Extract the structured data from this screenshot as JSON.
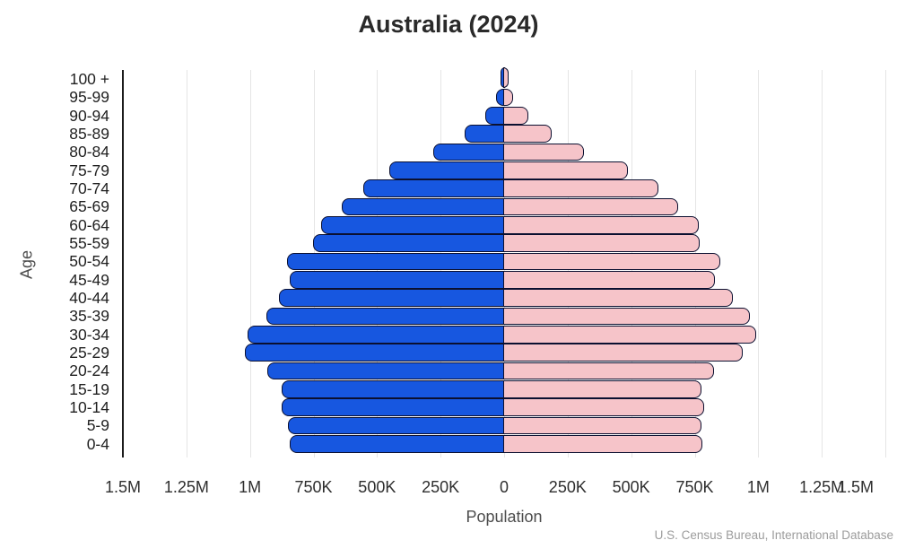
{
  "title": "Australia (2024)",
  "xlabel": "Population",
  "ylabel": "Age",
  "source": "U.S. Census Bureau, International Database",
  "colors": {
    "male": "#1757E0",
    "female": "#F6C4C9",
    "outline": "#0B1030",
    "gridline": "#E5E5E5",
    "axis": "#1C1C1C"
  },
  "chart_data": {
    "type": "bar",
    "subtype": "population-pyramid",
    "title": "Australia (2024)",
    "xlabel": "Population",
    "ylabel": "Age",
    "grid": true,
    "xlim": [
      -1500000,
      1500000
    ],
    "tick_values": [
      -1500000,
      -1250000,
      -1000000,
      -750000,
      -500000,
      -250000,
      0,
      250000,
      500000,
      750000,
      1000000,
      1250000,
      1500000
    ],
    "x_ticks": [
      "1.5M",
      "1.25M",
      "1M",
      "750K",
      "500K",
      "250K",
      "0",
      "250K",
      "500K",
      "750K",
      "1M",
      "1.25M",
      "1.5M"
    ],
    "categories": [
      "100 +",
      "95-99",
      "90-94",
      "85-89",
      "80-84",
      "75-79",
      "70-74",
      "65-69",
      "60-64",
      "55-59",
      "50-54",
      "45-49",
      "40-44",
      "35-39",
      "30-34",
      "25-29",
      "20-24",
      "15-19",
      "10-14",
      "5-9",
      "0-4"
    ],
    "series": [
      {
        "name": "Male",
        "side": "left",
        "color": "#1757E0",
        "values": [
          8000,
          25000,
          70000,
          150000,
          275000,
          445000,
          550000,
          635000,
          715000,
          745000,
          850000,
          840000,
          880000,
          930000,
          1005000,
          1015000,
          925000,
          870000,
          870000,
          845000,
          840000
        ]
      },
      {
        "name": "Female",
        "side": "right",
        "color": "#F6C4C9",
        "values": [
          12000,
          30000,
          90000,
          180000,
          310000,
          480000,
          600000,
          680000,
          760000,
          765000,
          845000,
          825000,
          895000,
          960000,
          985000,
          935000,
          820000,
          770000,
          780000,
          770000,
          775000
        ]
      }
    ]
  }
}
